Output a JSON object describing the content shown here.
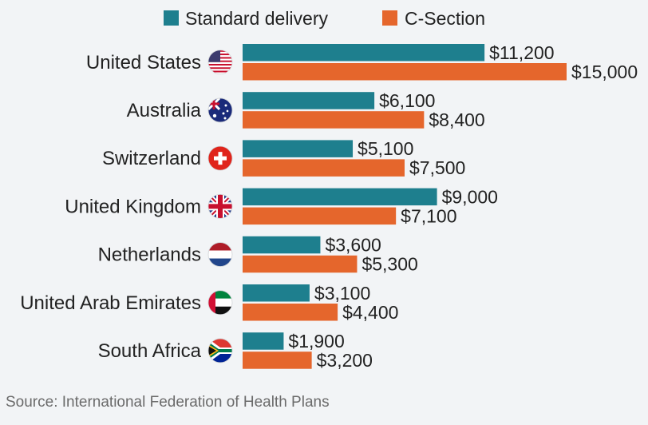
{
  "chart_data": {
    "type": "bar",
    "orientation": "horizontal",
    "title": "",
    "xlabel": "",
    "ylabel": "",
    "xlim": [
      0,
      15000
    ],
    "grid": false,
    "legend_position": "top",
    "categories": [
      "United States",
      "Australia",
      "Switzerland",
      "United Kingdom",
      "Netherlands",
      "United Arab Emirates",
      "South Africa"
    ],
    "flags": [
      "us-flag-icon",
      "australia-flag-icon",
      "switzerland-flag-icon",
      "uk-flag-icon",
      "netherlands-flag-icon",
      "uae-flag-icon",
      "south-africa-flag-icon"
    ],
    "series": [
      {
        "name": "Standard delivery",
        "color": "#1e7f8e",
        "values": [
          11200,
          6100,
          5100,
          9000,
          3600,
          3100,
          1900
        ],
        "labels": [
          "$11,200",
          "$6,100",
          "$5,100",
          "$9,000",
          "$3,600",
          "$3,100",
          "$1,900"
        ]
      },
      {
        "name": "C-Section",
        "color": "#e5662c",
        "values": [
          15000,
          8400,
          7500,
          7100,
          5300,
          4400,
          3200
        ],
        "labels": [
          "$15,000",
          "$8,400",
          "$7,500",
          "$7,100",
          "$5,300",
          "$4,400",
          "$3,200"
        ]
      }
    ]
  },
  "source": "Source: International Federation of Health Plans"
}
